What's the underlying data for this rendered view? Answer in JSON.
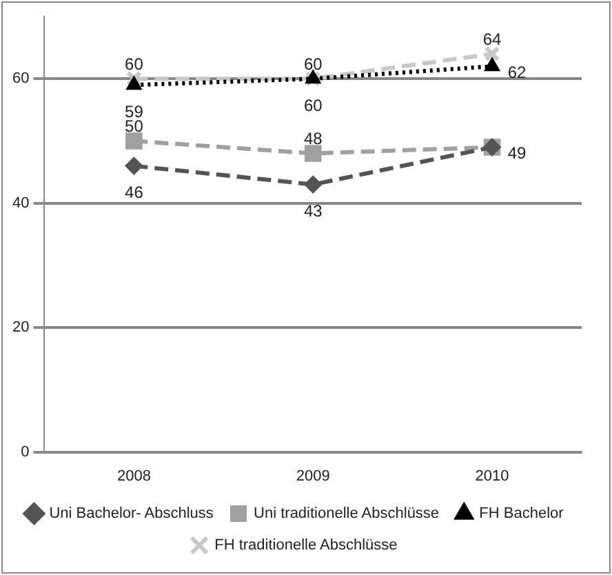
{
  "chart_data": {
    "type": "line",
    "categories": [
      "2008",
      "2009",
      "2010"
    ],
    "ylim": [
      0,
      70
    ],
    "yticks": [
      0,
      20,
      40,
      60
    ],
    "grid": "y",
    "legend": "bottom",
    "series": [
      {
        "name": "Uni Bachelor- Abschluss",
        "color": "#545454",
        "values": [
          46,
          43,
          49
        ],
        "marker": "diamond",
        "line_style": "dashed",
        "value_labels": [
          "46",
          "43",
          "49"
        ]
      },
      {
        "name": "Uni traditionelle Abschlüsse",
        "color": "#a0a0a0",
        "values": [
          50,
          48,
          49
        ],
        "marker": "square",
        "line_style": "dashed",
        "value_labels": [
          "50",
          "48",
          null
        ]
      },
      {
        "name": "FH Bachelor",
        "color": "#000000",
        "values": [
          59,
          60,
          62
        ],
        "marker": "triangle",
        "line_style": "dotted",
        "value_labels": [
          "59",
          "60",
          "62"
        ]
      },
      {
        "name": "FH traditionelle Abschlüsse",
        "color": "#c8c8c8",
        "values": [
          60,
          60,
          64
        ],
        "marker": "cross",
        "line_style": "dashed",
        "value_labels": [
          "60",
          "60",
          "64"
        ]
      }
    ]
  }
}
